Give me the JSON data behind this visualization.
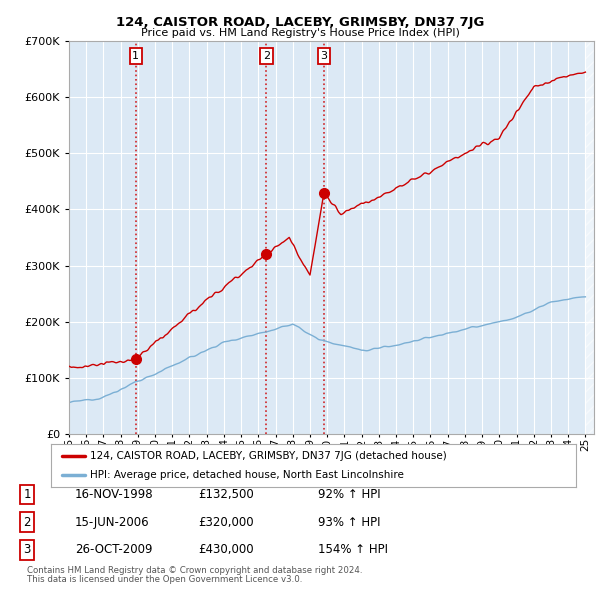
{
  "title": "124, CAISTOR ROAD, LACEBY, GRIMSBY, DN37 7JG",
  "subtitle": "Price paid vs. HM Land Registry's House Price Index (HPI)",
  "ylim": [
    0,
    700000
  ],
  "yticks": [
    0,
    100000,
    200000,
    300000,
    400000,
    500000,
    600000,
    700000
  ],
  "background_color": "#ffffff",
  "chart_bg_color": "#dce9f5",
  "grid_color": "#ffffff",
  "sale_color": "#cc0000",
  "hpi_color": "#7bafd4",
  "legend_line1": "124, CAISTOR ROAD, LACEBY, GRIMSBY, DN37 7JG (detached house)",
  "legend_line2": "HPI: Average price, detached house, North East Lincolnshire",
  "sale_table": [
    {
      "num": "1",
      "date": "16-NOV-1998",
      "price": "£132,500",
      "hpi": "92% ↑ HPI"
    },
    {
      "num": "2",
      "date": "15-JUN-2006",
      "price": "£320,000",
      "hpi": "93% ↑ HPI"
    },
    {
      "num": "3",
      "date": "26-OCT-2009",
      "price": "£430,000",
      "hpi": "154% ↑ HPI"
    }
  ],
  "footer1": "Contains HM Land Registry data © Crown copyright and database right 2024.",
  "footer2": "This data is licensed under the Open Government Licence v3.0.",
  "xmin": 1995.0,
  "xmax": 2025.5,
  "sale_dates": [
    1998.88,
    2006.46,
    2009.82
  ],
  "sale_prices": [
    132500,
    320000,
    430000
  ],
  "sale_labels": [
    "1",
    "2",
    "3"
  ]
}
